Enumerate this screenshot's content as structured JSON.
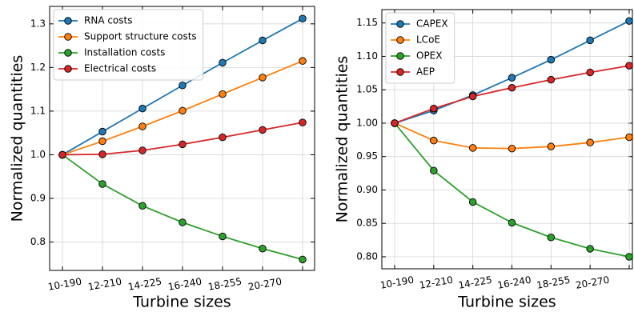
{
  "chart_data": [
    {
      "type": "line",
      "xlabel": "Turbine sizes",
      "ylabel": "Normalized quantities",
      "categories": [
        "10-190",
        "12-210",
        "14-225",
        "16-240",
        "18-255",
        "20-270",
        null
      ],
      "series": [
        {
          "name": "RNA costs",
          "color": "#1f77b4",
          "values": [
            1.0,
            1.053,
            1.106,
            1.159,
            1.211,
            1.262,
            1.312
          ]
        },
        {
          "name": "Support structure costs",
          "color": "#ff7f0e",
          "values": [
            1.0,
            1.031,
            1.065,
            1.101,
            1.139,
            1.177,
            1.215
          ]
        },
        {
          "name": "Installation costs",
          "color": "#2ca02c",
          "values": [
            1.0,
            0.933,
            0.883,
            0.845,
            0.813,
            0.785,
            0.76
          ]
        },
        {
          "name": "Electrical costs",
          "color": "#d62728",
          "values": [
            1.0,
            1.001,
            1.01,
            1.024,
            1.04,
            1.057,
            1.074
          ]
        }
      ],
      "ylim": [
        0.735,
        1.34
      ],
      "yticks": [
        0.8,
        0.9,
        {
          "value": 1.0,
          "label": "1.0"
        },
        1.1,
        1.2,
        1.3
      ],
      "grid": true,
      "legend": "upper left"
    },
    {
      "type": "line",
      "xlabel": "Turbine sizes",
      "ylabel": "Normalized quantities",
      "categories": [
        "10-190",
        "12-210",
        "14-225",
        "16-240",
        "18-255",
        "20-270",
        null
      ],
      "series": [
        {
          "name": "CAPEX",
          "color": "#1f77b4",
          "values": [
            1.0,
            1.019,
            1.042,
            1.068,
            1.095,
            1.124,
            1.153
          ]
        },
        {
          "name": "LCoE",
          "color": "#ff7f0e",
          "values": [
            1.0,
            0.974,
            0.963,
            0.962,
            0.965,
            0.971,
            0.979
          ]
        },
        {
          "name": "OPEX",
          "color": "#2ca02c",
          "values": [
            1.0,
            0.929,
            0.882,
            0.851,
            0.829,
            0.812,
            0.8
          ]
        },
        {
          "name": "AEP",
          "color": "#d62728",
          "values": [
            1.0,
            1.022,
            1.04,
            1.053,
            1.065,
            1.076,
            1.086
          ]
        }
      ],
      "ylim": [
        0.782,
        1.17
      ],
      "yticks": [
        {
          "value": 0.8,
          "label": "0.80"
        },
        0.85,
        {
          "value": 0.9,
          "label": "0.90"
        },
        0.95,
        {
          "value": 1.0,
          "label": "1.00"
        },
        1.05,
        {
          "value": 1.1,
          "label": "1.10"
        },
        1.15
      ],
      "grid": true,
      "legend": "upper left"
    }
  ]
}
